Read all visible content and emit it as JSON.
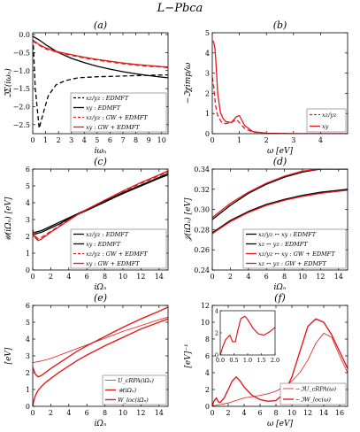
{
  "figure": {
    "title": "L−Pbca"
  },
  "chart_data": [
    {
      "panel": "(a)",
      "type": "line",
      "xlabel": "iωₙ",
      "ylabel": "ℑΣ(iωₙ)",
      "xlim": [
        0,
        10.5
      ],
      "ylim": [
        -2.75,
        0.05
      ],
      "xticks": [
        0,
        1,
        2,
        3,
        4,
        5,
        6,
        7,
        8,
        9,
        10
      ],
      "yticks": [
        0.0,
        -0.5,
        -1.0,
        -1.5,
        -2.0,
        -2.5
      ],
      "yticklabels": [
        "0.0",
        "−0.5",
        "−1.0",
        "−1.5",
        "−2.0",
        "−2.5"
      ],
      "legend": "bottom-right",
      "series": [
        {
          "name": "xz/yz : EDMFT",
          "color": "#000000",
          "dash": "5,3",
          "x": [
            0.05,
            0.2,
            0.5,
            0.8,
            1.2,
            1.8,
            2.5,
            3.5,
            5,
            7,
            9,
            10.5
          ],
          "y": [
            -0.3,
            -1.5,
            -2.6,
            -2.2,
            -1.7,
            -1.4,
            -1.28,
            -1.2,
            -1.17,
            -1.15,
            -1.13,
            -1.12
          ]
        },
        {
          "name": "xy : EDMFT",
          "color": "#000000",
          "dash": "",
          "x": [
            0,
            0.5,
            1,
            2,
            3,
            4,
            5,
            6,
            7,
            8,
            9,
            10,
            10.5
          ],
          "y": [
            -0.05,
            -0.15,
            -0.28,
            -0.5,
            -0.66,
            -0.78,
            -0.88,
            -0.96,
            -1.03,
            -1.09,
            -1.14,
            -1.18,
            -1.2
          ]
        },
        {
          "name": "xz/yz : GW + EDMFT",
          "color": "#e31a1c",
          "dash": "5,3",
          "x": [
            0,
            0.5,
            1,
            2,
            3,
            4,
            5,
            6,
            7,
            8,
            9,
            10,
            10.5
          ],
          "y": [
            -0.18,
            -0.3,
            -0.4,
            -0.5,
            -0.58,
            -0.65,
            -0.71,
            -0.76,
            -0.81,
            -0.85,
            -0.88,
            -0.9,
            -0.92
          ]
        },
        {
          "name": "xy : GW + EDMFT",
          "color": "#e31a1c",
          "dash": "",
          "x": [
            0,
            0.5,
            1,
            2,
            3,
            4,
            5,
            6,
            7,
            8,
            9,
            10,
            10.5
          ],
          "y": [
            -0.15,
            -0.28,
            -0.37,
            -0.48,
            -0.56,
            -0.63,
            -0.69,
            -0.74,
            -0.79,
            -0.83,
            -0.86,
            -0.89,
            -0.9
          ]
        }
      ]
    },
    {
      "panel": "(b)",
      "type": "line",
      "xlabel": "ω [eV]",
      "ylabel": "−ℑχimp/ω",
      "xlim": [
        0,
        5
      ],
      "ylim": [
        0,
        5
      ],
      "xticks": [
        0,
        1,
        2,
        3,
        4
      ],
      "yticks": [
        0,
        1,
        2,
        3,
        4,
        5
      ],
      "legend": "bottom-right",
      "series": [
        {
          "name": "xz/yz",
          "color": "#e31a1c",
          "dash": "5,3",
          "x": [
            0,
            0.05,
            0.12,
            0.2,
            0.35,
            0.5,
            0.7,
            0.9,
            1.0,
            1.2,
            1.5,
            2,
            3,
            5
          ],
          "y": [
            2.8,
            2.4,
            1.4,
            0.9,
            0.55,
            0.5,
            0.55,
            0.7,
            0.55,
            0.25,
            0.08,
            0.02,
            0,
            0
          ]
        },
        {
          "name": "xy",
          "color": "#e31a1c",
          "dash": "",
          "x": [
            0,
            0.05,
            0.1,
            0.15,
            0.2,
            0.3,
            0.4,
            0.5,
            0.7,
            0.9,
            1.0,
            1.2,
            1.5,
            2,
            3,
            5
          ],
          "y": [
            4.6,
            4.55,
            4.2,
            3.2,
            2.0,
            1.05,
            0.75,
            0.6,
            0.55,
            0.85,
            0.9,
            0.4,
            0.1,
            0.02,
            0,
            0
          ]
        }
      ]
    },
    {
      "panel": "(c)",
      "type": "line",
      "xlabel": "iΩₙ",
      "ylabel": "𝒰(iΩₙ) [eV]",
      "xlim": [
        0,
        15
      ],
      "ylim": [
        0,
        6
      ],
      "xticks": [
        0,
        2,
        4,
        6,
        8,
        10,
        12,
        14
      ],
      "yticks": [
        0,
        1,
        2,
        3,
        4,
        5,
        6
      ],
      "legend": "bottom-right",
      "series": [
        {
          "name": "xz/yz : EDMFT",
          "color": "#000000",
          "dash": "",
          "x": [
            0,
            1,
            2,
            3,
            4,
            5,
            6,
            8,
            10,
            12,
            14,
            15
          ],
          "y": [
            2.2,
            2.35,
            2.6,
            2.85,
            3.1,
            3.35,
            3.6,
            4.1,
            4.6,
            5.05,
            5.5,
            5.75
          ]
        },
        {
          "name": "xy : EDMFT",
          "color": "#000000",
          "dash": "",
          "x": [
            0,
            1,
            2,
            3,
            4,
            5,
            6,
            8,
            10,
            12,
            14,
            15
          ],
          "y": [
            2.1,
            2.25,
            2.5,
            2.75,
            3.05,
            3.3,
            3.55,
            4.05,
            4.55,
            5.0,
            5.45,
            5.65
          ]
        },
        {
          "name": "xz/yz : GW + EDMFT",
          "color": "#e31a1c",
          "dash": "5,3",
          "x": [
            0,
            0.3,
            0.6,
            1,
            2,
            3,
            4,
            5,
            6,
            8,
            10,
            12,
            14,
            15
          ],
          "y": [
            2.4,
            2.0,
            1.85,
            1.95,
            2.3,
            2.65,
            3.0,
            3.3,
            3.6,
            4.15,
            4.65,
            5.15,
            5.6,
            5.85
          ]
        },
        {
          "name": "xy : GW + EDMFT",
          "color": "#e31a1c",
          "dash": "",
          "x": [
            0,
            0.3,
            0.6,
            1,
            2,
            3,
            4,
            5,
            6,
            8,
            10,
            12,
            14,
            15
          ],
          "y": [
            2.3,
            1.9,
            1.75,
            1.85,
            2.25,
            2.6,
            2.95,
            3.3,
            3.6,
            4.15,
            4.7,
            5.2,
            5.65,
            5.9
          ]
        }
      ]
    },
    {
      "panel": "(d)",
      "type": "line",
      "xlabel": "iΩₙ",
      "ylabel": "𝒥(iΩₙ) [eV]",
      "xlim": [
        0,
        15
      ],
      "ylim": [
        0.24,
        0.34
      ],
      "xticks": [
        0,
        2,
        4,
        6,
        8,
        10,
        12,
        14
      ],
      "yticks": [
        0.24,
        0.26,
        0.28,
        0.3,
        0.32,
        0.34
      ],
      "yticklabels": [
        "0.24",
        "0.26",
        "0.28",
        "0.30",
        "0.32",
        "0.34"
      ],
      "legend": "bottom-right",
      "series": [
        {
          "name": "xz/yz ↔ xy : EDMFT",
          "color": "#000000",
          "dash": "",
          "x": [
            0,
            1,
            2,
            4,
            6,
            8,
            10,
            12,
            15
          ],
          "y": [
            0.29,
            0.297,
            0.304,
            0.316,
            0.325,
            0.332,
            0.337,
            0.341,
            0.345
          ]
        },
        {
          "name": "xz ↔ yz : EDMFT",
          "color": "#000000",
          "dash": "",
          "x": [
            0,
            1,
            2,
            4,
            6,
            8,
            10,
            12,
            15
          ],
          "y": [
            0.277,
            0.283,
            0.289,
            0.298,
            0.305,
            0.31,
            0.314,
            0.317,
            0.32
          ]
        },
        {
          "name": "xz/yz ↔ xy : GW + EDMFT",
          "color": "#e31a1c",
          "dash": "",
          "x": [
            0,
            1,
            2,
            4,
            6,
            8,
            10,
            12,
            15
          ],
          "y": [
            0.292,
            0.299,
            0.306,
            0.317,
            0.326,
            0.333,
            0.338,
            0.342,
            0.346
          ]
        },
        {
          "name": "xz ↔ yz : GW + EDMFT",
          "color": "#e31a1c",
          "dash": "",
          "x": [
            0,
            1,
            2,
            4,
            6,
            8,
            10,
            12,
            15
          ],
          "y": [
            0.276,
            0.282,
            0.288,
            0.297,
            0.304,
            0.309,
            0.313,
            0.316,
            0.319
          ]
        }
      ]
    },
    {
      "panel": "(e)",
      "type": "line",
      "xlabel": "iΩₙ",
      "ylabel": "[eV]",
      "xlim": [
        0,
        15
      ],
      "ylim": [
        0,
        6
      ],
      "xticks": [
        0,
        2,
        4,
        6,
        8,
        10,
        12,
        14
      ],
      "yticks": [
        0,
        1,
        2,
        3,
        4,
        5,
        6
      ],
      "legend": "bottom-right",
      "series": [
        {
          "name": "U_cRPA(iΩₙ)",
          "color": "#e31a1c",
          "dash": "",
          "width": 0.8,
          "x": [
            0,
            1,
            2,
            3,
            4,
            5,
            6,
            8,
            10,
            12,
            14,
            15
          ],
          "y": [
            2.6,
            2.7,
            2.85,
            3.05,
            3.25,
            3.45,
            3.65,
            4.05,
            4.45,
            4.8,
            5.15,
            5.3
          ]
        },
        {
          "name": "𝒰(iΩₙ)",
          "color": "#e31a1c",
          "dash": "",
          "width": 1.4,
          "x": [
            0,
            0.3,
            0.6,
            1,
            2,
            3,
            4,
            5,
            6,
            8,
            10,
            12,
            14,
            15
          ],
          "y": [
            2.3,
            1.9,
            1.75,
            1.85,
            2.25,
            2.6,
            2.95,
            3.3,
            3.6,
            4.15,
            4.7,
            5.2,
            5.65,
            5.9
          ]
        },
        {
          "name": "W_loc(iΩₙ)",
          "color": "#e31a1c",
          "dash": "",
          "width": 1.4,
          "x": [
            0,
            0.1,
            0.3,
            0.6,
            1,
            1.5,
            2,
            3,
            4,
            5,
            6,
            8,
            10,
            12,
            14,
            15
          ],
          "y": [
            0,
            0.3,
            0.65,
            0.95,
            1.2,
            1.45,
            1.65,
            2.05,
            2.4,
            2.75,
            3.05,
            3.6,
            4.1,
            4.6,
            5.0,
            5.2
          ]
        }
      ]
    },
    {
      "panel": "(f)",
      "type": "line",
      "xlabel": "ω [eV]",
      "ylabel": "[eV]⁻¹",
      "xlim": [
        0,
        17
      ],
      "ylim": [
        0,
        12
      ],
      "xticks": [
        0,
        2,
        4,
        6,
        8,
        10,
        12,
        14,
        16
      ],
      "yticks": [
        0,
        2,
        4,
        6,
        8,
        10,
        12
      ],
      "legend": "bottom-right",
      "series": [
        {
          "name": "−ℑU_cRPA(ω)",
          "color": "#e31a1c",
          "dash": "",
          "width": 0.8,
          "x": [
            0,
            1,
            2,
            3,
            4,
            5,
            6,
            7,
            8,
            9,
            10,
            11,
            12,
            13,
            14,
            15,
            16,
            17
          ],
          "y": [
            0.05,
            0.2,
            0.4,
            0.7,
            1.0,
            1.15,
            1.3,
            1.5,
            1.8,
            2.3,
            3.0,
            4.0,
            5.5,
            7.5,
            8.7,
            8.2,
            6.0,
            4.0
          ]
        },
        {
          "name": "−ℑW_loc(ω)",
          "color": "#e31a1c",
          "dash": "",
          "width": 1.4,
          "x": [
            0,
            0.2,
            0.5,
            0.8,
            1,
            1.5,
            2,
            2.5,
            3,
            3.5,
            4,
            5,
            6,
            7,
            8,
            9,
            10,
            11,
            12,
            13,
            14,
            15,
            16,
            17
          ],
          "y": [
            0,
            0.6,
            1.0,
            0.5,
            0.45,
            1.0,
            2.0,
            3.0,
            3.5,
            3.0,
            2.3,
            1.3,
            0.8,
            0.6,
            0.7,
            1.5,
            3.5,
            6.5,
            9.5,
            10.4,
            10.0,
            8.5,
            6.5,
            4.5
          ]
        }
      ],
      "inset": {
        "xlim": [
          0,
          2
        ],
        "ylim": [
          0,
          4
        ],
        "xticks": [
          0.0,
          0.5,
          1.0,
          1.5,
          2.0
        ],
        "yticks": [
          0,
          2,
          4
        ],
        "xticklabels": [
          "0.0",
          "0.5",
          "1.0",
          "1.5",
          "2.0"
        ],
        "series": [
          {
            "color": "#e31a1c",
            "width": 1.2,
            "x": [
              0,
              0.1,
              0.2,
              0.35,
              0.45,
              0.55,
              0.65,
              0.75,
              0.9,
              1.0,
              1.2,
              1.4,
              1.6,
              1.8,
              2.0
            ],
            "y": [
              0,
              0.8,
              1.4,
              1.8,
              1.2,
              1.2,
              2.3,
              3.3,
              3.5,
              3.2,
              2.4,
              1.9,
              1.8,
              2.1,
              2.5
            ]
          }
        ]
      }
    }
  ]
}
